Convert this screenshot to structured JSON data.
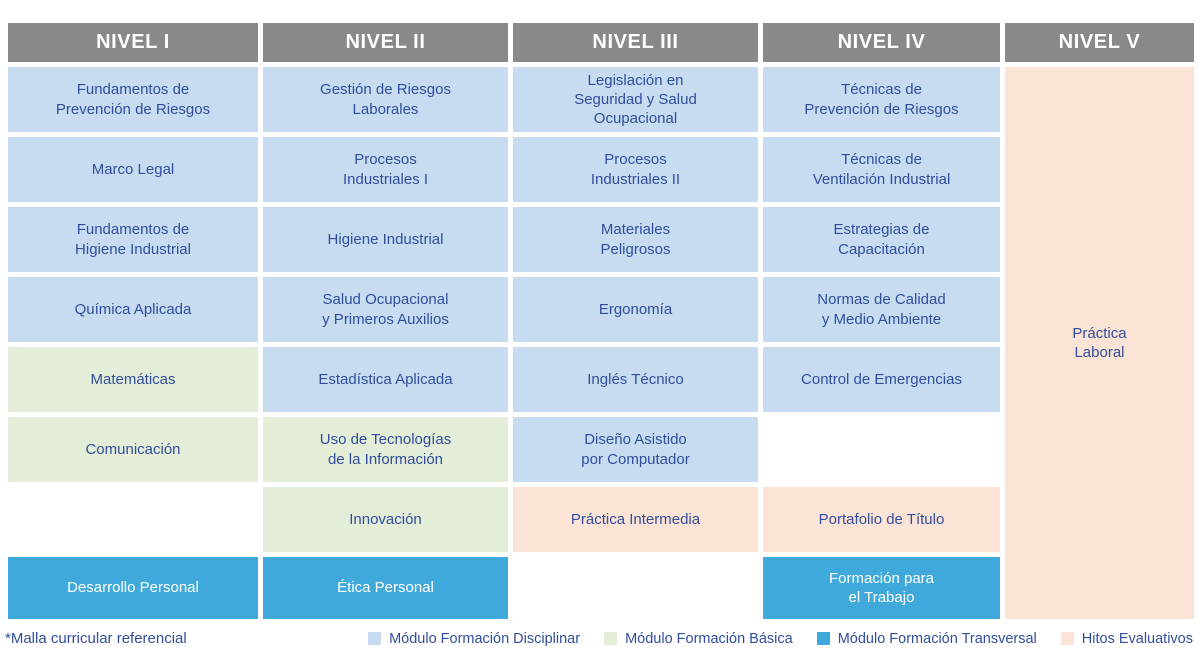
{
  "footnote": "*Malla curricular referencial",
  "colors": {
    "header_bg": "#898989",
    "header_text": "#FFFFFF",
    "disciplinar": "#C7DCF0",
    "basica": "#E3EDD7",
    "transversal": "#3FA9DC",
    "hitos": "#FBE3D5",
    "cell_text": "#314E9C",
    "transversal_text": "#FFFFFF"
  },
  "levels": [
    {
      "label": "NIVEL I",
      "cells": [
        {
          "row": 1,
          "type": "disciplinar",
          "text": "Fundamentos de\nPrevención de Riesgos"
        },
        {
          "row": 2,
          "type": "disciplinar",
          "text": "Marco Legal"
        },
        {
          "row": 3,
          "type": "disciplinar",
          "text": "Fundamentos de\nHigiene Industrial"
        },
        {
          "row": 4,
          "type": "disciplinar",
          "text": "Química Aplicada"
        },
        {
          "row": 5,
          "type": "basica",
          "text": "Matemáticas"
        },
        {
          "row": 6,
          "type": "basica",
          "text": "Comunicación"
        },
        {
          "row": 8,
          "type": "transversal",
          "text": "Desarrollo Personal"
        }
      ]
    },
    {
      "label": "NIVEL II",
      "cells": [
        {
          "row": 1,
          "type": "disciplinar",
          "text": "Gestión de Riesgos\nLaborales"
        },
        {
          "row": 2,
          "type": "disciplinar",
          "text": "Procesos\nIndustriales I"
        },
        {
          "row": 3,
          "type": "disciplinar",
          "text": "Higiene Industrial"
        },
        {
          "row": 4,
          "type": "disciplinar",
          "text": "Salud Ocupacional\ny Primeros Auxilios"
        },
        {
          "row": 5,
          "type": "disciplinar",
          "text": "Estadística Aplicada"
        },
        {
          "row": 6,
          "type": "basica",
          "text": "Uso de Tecnologías\nde la Información"
        },
        {
          "row": 7,
          "type": "basica",
          "text": "Innovación"
        },
        {
          "row": 8,
          "type": "transversal",
          "text": "Ética Personal"
        }
      ]
    },
    {
      "label": "NIVEL III",
      "cells": [
        {
          "row": 1,
          "type": "disciplinar",
          "text": "Legislación en\nSeguridad y Salud\nOcupacional"
        },
        {
          "row": 2,
          "type": "disciplinar",
          "text": "Procesos\nIndustriales II"
        },
        {
          "row": 3,
          "type": "disciplinar",
          "text": "Materiales\nPeligrosos"
        },
        {
          "row": 4,
          "type": "disciplinar",
          "text": "Ergonomía"
        },
        {
          "row": 5,
          "type": "disciplinar",
          "text": "Inglés Técnico"
        },
        {
          "row": 6,
          "type": "disciplinar",
          "text": "Diseño Asistido\npor Computador"
        },
        {
          "row": 7,
          "type": "hitos",
          "text": "Práctica Intermedia"
        }
      ]
    },
    {
      "label": "NIVEL IV",
      "cells": [
        {
          "row": 1,
          "type": "disciplinar",
          "text": "Técnicas de\nPrevención de Riesgos"
        },
        {
          "row": 2,
          "type": "disciplinar",
          "text": "Técnicas de\nVentilación Industrial"
        },
        {
          "row": 3,
          "type": "disciplinar",
          "text": "Estrategias de\nCapacitación"
        },
        {
          "row": 4,
          "type": "disciplinar",
          "text": "Normas de Calidad\ny Medio Ambiente"
        },
        {
          "row": 5,
          "type": "disciplinar",
          "text": "Control de Emergencias"
        },
        {
          "row": 7,
          "type": "hitos",
          "text": "Portafolio de Título"
        },
        {
          "row": 8,
          "type": "transversal",
          "text": "Formación para\nel Trabajo"
        }
      ]
    },
    {
      "label": "NIVEL V",
      "cells": [
        {
          "row": 1,
          "span": 8,
          "type": "hitos",
          "text": "Práctica\nLaboral"
        }
      ]
    }
  ],
  "legend": {
    "items": [
      {
        "label": "Módulo Formación Disciplinar",
        "type": "disciplinar"
      },
      {
        "label": "Módulo Formación Básica",
        "type": "basica"
      },
      {
        "label": "Módulo Formación Transversal",
        "type": "transversal"
      },
      {
        "label": "Hitos Evaluativos",
        "type": "hitos"
      }
    ]
  }
}
